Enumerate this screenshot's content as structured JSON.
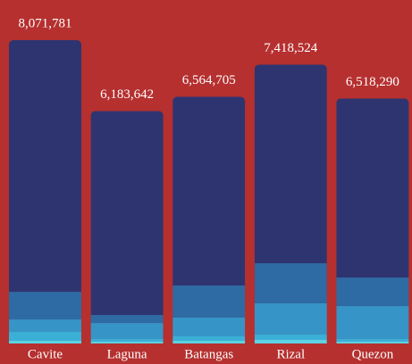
{
  "chart_data": {
    "type": "stacked-bar",
    "categories": [
      "Cavite",
      "Laguna",
      "Batangas",
      "Rizal",
      "Quezon"
    ],
    "totals": [
      8071781,
      6183642,
      6564705,
      7418524,
      6518290
    ],
    "total_labels": [
      "8,071,781",
      "6,183,642",
      "6,564,705",
      "7,418,524",
      "6,518,290"
    ],
    "series": [
      {
        "color": "#5ed3e3",
        "values": [
          71000,
          47000,
          71000,
          95000,
          47000
        ]
      },
      {
        "color": "#3bb0d6",
        "values": [
          237000,
          71000,
          119000,
          142000,
          71000
        ]
      },
      {
        "color": "#3794c6",
        "values": [
          332000,
          427000,
          499000,
          831000,
          878000
        ]
      },
      {
        "color": "#2e6aa3",
        "values": [
          736000,
          214000,
          855000,
          1068000,
          760000
        ]
      },
      {
        "color": "#2e3470",
        "values": [
          6695781,
          5424642,
          5020705,
          5282524,
          4762290
        ]
      }
    ],
    "background": "#b5302f"
  }
}
